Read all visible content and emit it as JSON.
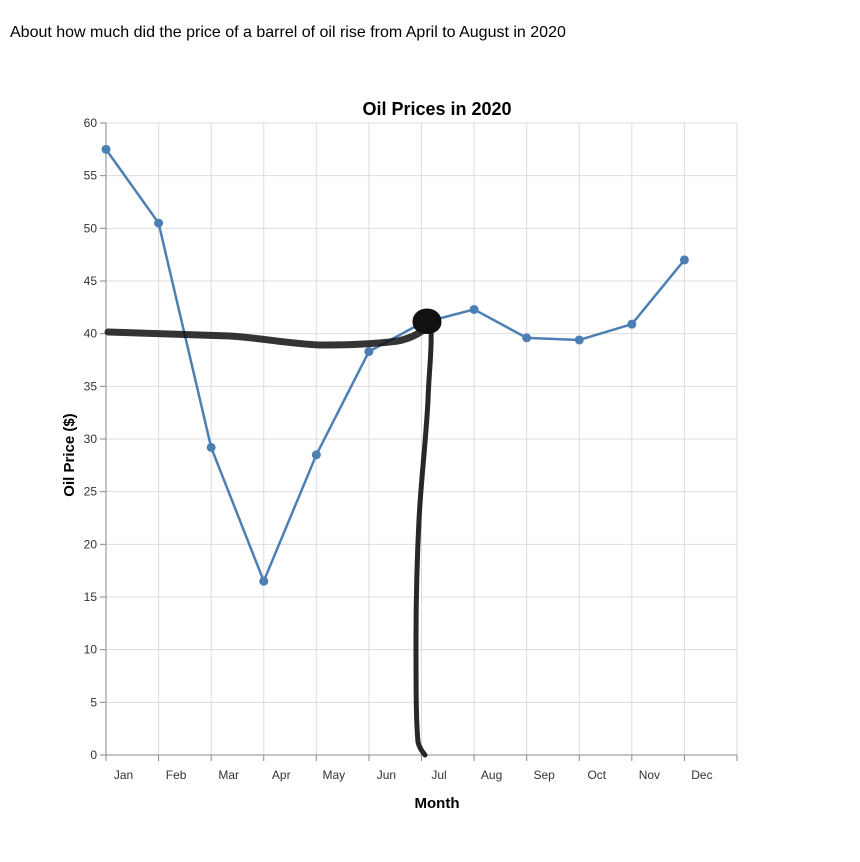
{
  "question": "About how much did the price of a barrel of oil rise from April to August in 2020",
  "chart_data": {
    "type": "line",
    "title": "Oil Prices in 2020",
    "xlabel": "Month",
    "ylabel": "Oil Price ($)",
    "categories": [
      "Jan",
      "Feb",
      "Mar",
      "Apr",
      "May",
      "Jun",
      "Jul",
      "Aug",
      "Sep",
      "Oct",
      "Nov",
      "Dec"
    ],
    "series": [
      {
        "values": [
          57.5,
          50.5,
          29.2,
          16.5,
          28.5,
          38.3,
          41.0,
          42.3,
          39.6,
          39.4,
          40.9,
          47.0
        ]
      }
    ],
    "ylim": [
      0,
      60
    ],
    "yticks": [
      0,
      5,
      10,
      15,
      20,
      25,
      30,
      35,
      40,
      45,
      50,
      55,
      60
    ],
    "grid": true,
    "colors": {
      "line": "#4c7fb3",
      "grid": "#dddddd",
      "axis": "#888888",
      "annotation": "#111111"
    }
  }
}
